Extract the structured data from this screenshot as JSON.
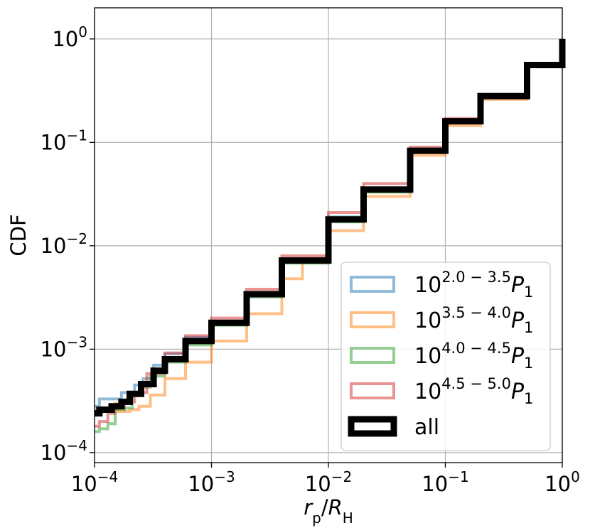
{
  "chart_data": {
    "type": "line",
    "xlabel": {
      "var": "r",
      "var_sub": "p",
      "sep": "/",
      "den": "R",
      "den_sub": "H"
    },
    "ylabel": "CDF",
    "xscale": "log",
    "yscale": "log",
    "xlim": [
      0.0001,
      1
    ],
    "ylim": [
      8e-05,
      2
    ],
    "grid": true,
    "legend_position": "lower-right",
    "x_ticks": [
      {
        "value": 0.0001,
        "base": "10",
        "exp": "−4"
      },
      {
        "value": 0.001,
        "base": "10",
        "exp": "−3"
      },
      {
        "value": 0.01,
        "base": "10",
        "exp": "−2"
      },
      {
        "value": 0.1,
        "base": "10",
        "exp": "−1"
      },
      {
        "value": 1,
        "base": "10",
        "exp": "0"
      }
    ],
    "y_ticks": [
      {
        "value": 0.0001,
        "base": "10",
        "exp": "−4"
      },
      {
        "value": 0.001,
        "base": "10",
        "exp": "−3"
      },
      {
        "value": 0.01,
        "base": "10",
        "exp": "−2"
      },
      {
        "value": 0.1,
        "base": "10",
        "exp": "−1"
      },
      {
        "value": 1,
        "base": "10",
        "exp": "0"
      }
    ],
    "series": [
      {
        "name": {
          "base": "10",
          "exp": "2.0 − 3.5",
          "suffix": "P",
          "suffix_sub": "1"
        },
        "color": "#1f77b4",
        "opacity": 0.5,
        "points": [
          [
            0.0001,
            0.00028
          ],
          [
            0.00011,
            0.00033
          ],
          [
            0.00015,
            0.00033
          ],
          [
            0.00017,
            0.00038
          ],
          [
            0.00022,
            0.00045
          ],
          [
            0.00026,
            0.00052
          ],
          [
            0.00032,
            0.0007
          ],
          [
            0.0004,
            0.0009
          ],
          [
            0.0006,
            0.0013
          ],
          [
            0.001,
            0.0018
          ],
          [
            0.002,
            0.0035
          ],
          [
            0.004,
            0.0075
          ],
          [
            0.01,
            0.019
          ],
          [
            0.02,
            0.036
          ],
          [
            0.05,
            0.085
          ],
          [
            0.1,
            0.16
          ],
          [
            0.2,
            0.28
          ],
          [
            0.5,
            0.56
          ],
          [
            1,
            1
          ]
        ]
      },
      {
        "name": {
          "base": "10",
          "exp": "3.5 − 4.0",
          "suffix": "P",
          "suffix_sub": "1"
        },
        "color": "#ff7f0e",
        "opacity": 0.5,
        "points": [
          [
            0.0001,
            0.00026
          ],
          [
            0.00011,
            0.00027
          ],
          [
            0.00015,
            0.0003
          ],
          [
            0.00016,
            0.00025
          ],
          [
            0.0002,
            0.00026
          ],
          [
            0.00024,
            0.00028
          ],
          [
            0.0003,
            0.00036
          ],
          [
            0.0004,
            0.00052
          ],
          [
            0.0006,
            0.00075
          ],
          [
            0.001,
            0.0012
          ],
          [
            0.002,
            0.0022
          ],
          [
            0.004,
            0.0048
          ],
          [
            0.006,
            0.0075
          ],
          [
            0.01,
            0.014
          ],
          [
            0.02,
            0.03
          ],
          [
            0.05,
            0.075
          ],
          [
            0.1,
            0.145
          ],
          [
            0.2,
            0.26
          ],
          [
            0.5,
            0.54
          ],
          [
            1,
            1
          ]
        ]
      },
      {
        "name": {
          "base": "10",
          "exp": "4.0 − 4.5",
          "suffix": "P",
          "suffix_sub": "1"
        },
        "color": "#2ca02c",
        "opacity": 0.5,
        "points": [
          [
            0.0001,
            0.00016
          ],
          [
            0.00011,
            0.00017
          ],
          [
            0.00013,
            0.00019
          ],
          [
            0.00015,
            0.00026
          ],
          [
            0.00018,
            0.00027
          ],
          [
            0.00021,
            0.00036
          ],
          [
            0.00025,
            0.00043
          ],
          [
            0.0003,
            0.00055
          ],
          [
            0.0004,
            0.00075
          ],
          [
            0.0006,
            0.0011
          ],
          [
            0.001,
            0.0017
          ],
          [
            0.002,
            0.0032
          ],
          [
            0.004,
            0.0068
          ],
          [
            0.01,
            0.017
          ],
          [
            0.02,
            0.033
          ],
          [
            0.05,
            0.08
          ],
          [
            0.1,
            0.155
          ],
          [
            0.2,
            0.275
          ],
          [
            0.5,
            0.55
          ],
          [
            1,
            1
          ]
        ]
      },
      {
        "name": {
          "base": "10",
          "exp": "4.5 − 5.0",
          "suffix": "P",
          "suffix_sub": "1"
        },
        "color": "#d62728",
        "opacity": 0.5,
        "points": [
          [
            0.0001,
            0.00018
          ],
          [
            0.00011,
            0.0002
          ],
          [
            0.00013,
            0.00024
          ],
          [
            0.00015,
            0.00027
          ],
          [
            0.00018,
            0.00031
          ],
          [
            0.00022,
            0.00038
          ],
          [
            0.00028,
            0.00058
          ],
          [
            0.0004,
            0.00092
          ],
          [
            0.0006,
            0.00135
          ],
          [
            0.001,
            0.002
          ],
          [
            0.002,
            0.0038
          ],
          [
            0.004,
            0.008
          ],
          [
            0.01,
            0.021
          ],
          [
            0.02,
            0.04
          ],
          [
            0.05,
            0.09
          ],
          [
            0.1,
            0.17
          ],
          [
            0.2,
            0.29
          ],
          [
            0.5,
            0.57
          ],
          [
            1,
            1
          ]
        ]
      },
      {
        "name": {
          "base": "all",
          "exp": "",
          "suffix": "",
          "suffix_sub": ""
        },
        "color": "#000000",
        "opacity": 1,
        "points": [
          [
            0.0001,
            0.00024
          ],
          [
            0.00011,
            0.00026
          ],
          [
            0.00014,
            0.00028
          ],
          [
            0.00017,
            0.00031
          ],
          [
            0.0002,
            0.00037
          ],
          [
            0.00025,
            0.00046
          ],
          [
            0.00032,
            0.00062
          ],
          [
            0.0004,
            0.0008
          ],
          [
            0.0006,
            0.0012
          ],
          [
            0.001,
            0.0018
          ],
          [
            0.002,
            0.0034
          ],
          [
            0.004,
            0.0072
          ],
          [
            0.01,
            0.018
          ],
          [
            0.02,
            0.035
          ],
          [
            0.05,
            0.083
          ],
          [
            0.1,
            0.16
          ],
          [
            0.2,
            0.28
          ],
          [
            0.5,
            0.56
          ],
          [
            1,
            1
          ]
        ]
      }
    ]
  }
}
